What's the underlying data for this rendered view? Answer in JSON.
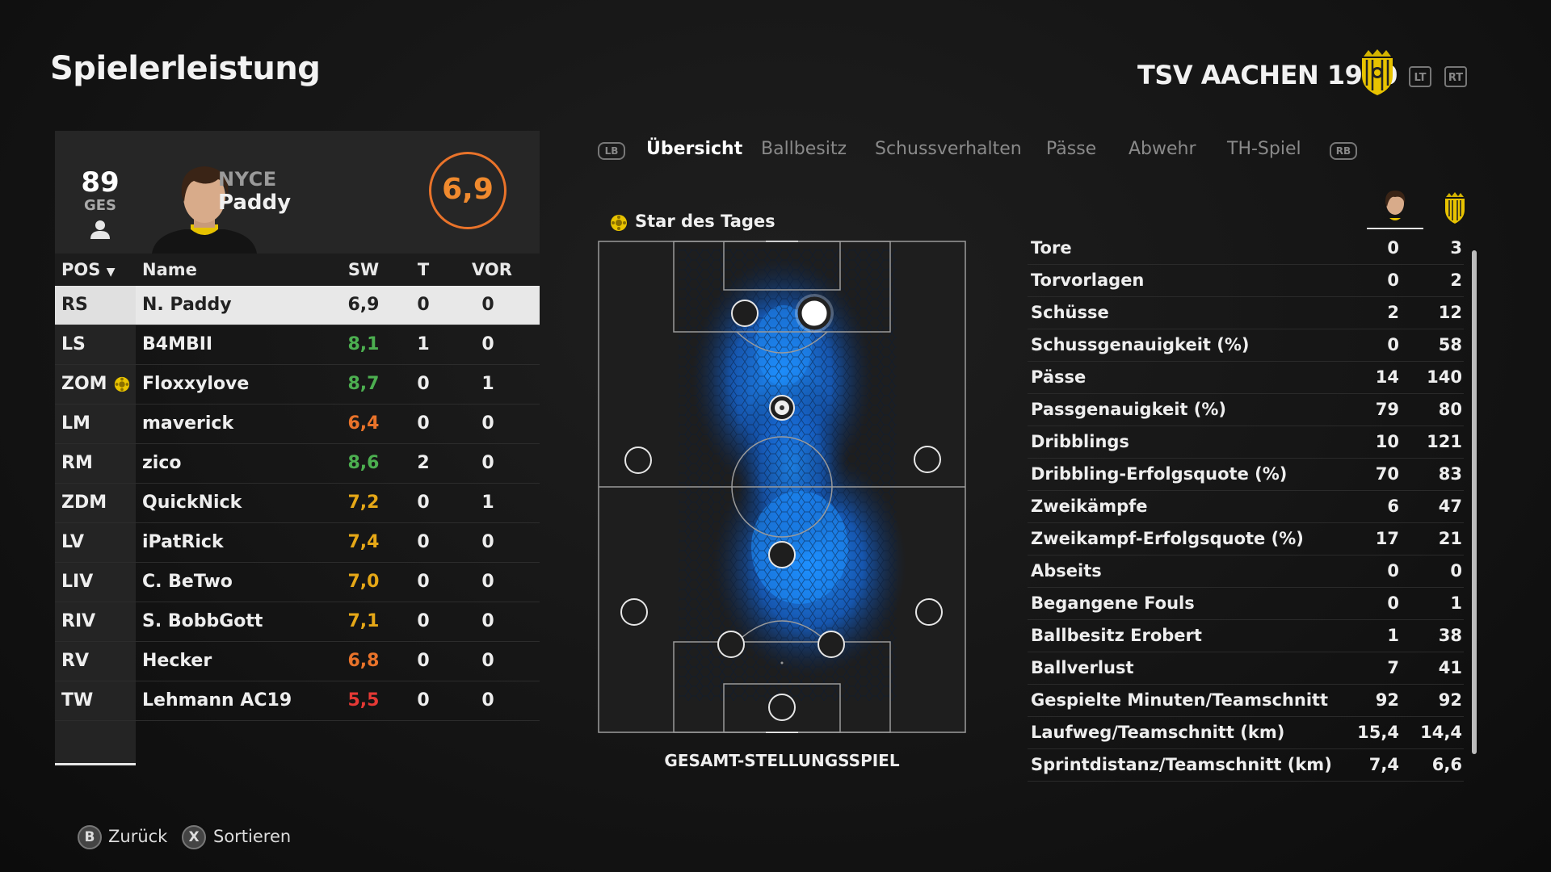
{
  "page_title": "Spielerleistung",
  "club": {
    "name": "TSV AACHEN 1900",
    "lt": "LT",
    "rt": "RT"
  },
  "player": {
    "overall": "89",
    "overall_label": "GES",
    "first_name": "NYCE",
    "last_name": "Paddy",
    "match_rating": "6,9"
  },
  "table": {
    "headers": {
      "pos": "POS",
      "name": "Name",
      "sw": "SW",
      "t": "T",
      "vor": "VOR"
    },
    "rows": [
      {
        "pos": "RS",
        "name": "N. Paddy",
        "sw": "6,9",
        "t": "0",
        "vor": "0"
      },
      {
        "pos": "LS",
        "name": "B4MBII",
        "sw": "8,1",
        "t": "1",
        "vor": "0"
      },
      {
        "pos": "ZOM",
        "name": "Floxxylove",
        "sw": "8,7",
        "t": "0",
        "vor": "1"
      },
      {
        "pos": "LM",
        "name": "maverick",
        "sw": "6,4",
        "t": "0",
        "vor": "0"
      },
      {
        "pos": "RM",
        "name": "zico",
        "sw": "8,6",
        "t": "2",
        "vor": "0"
      },
      {
        "pos": "ZDM",
        "name": "QuickNick",
        "sw": "7,2",
        "t": "0",
        "vor": "1"
      },
      {
        "pos": "LV",
        "name": "iPatRick",
        "sw": "7,4",
        "t": "0",
        "vor": "0"
      },
      {
        "pos": "LIV",
        "name": "C. BeTwo",
        "sw": "7,0",
        "t": "0",
        "vor": "0"
      },
      {
        "pos": "RIV",
        "name": "S. BobbGott",
        "sw": "7,1",
        "t": "0",
        "vor": "0"
      },
      {
        "pos": "RV",
        "name": "Hecker",
        "sw": "6,8",
        "t": "0",
        "vor": "0"
      },
      {
        "pos": "TW",
        "name": "Lehmann AC19",
        "sw": "5,5",
        "t": "0",
        "vor": "0"
      }
    ]
  },
  "tabs": {
    "lb": "LB",
    "rb": "RB",
    "items": [
      "Übersicht",
      "Ballbesitz",
      "Schussverhalten",
      "Pässe",
      "Abwehr",
      "TH-Spiel"
    ]
  },
  "heatmap": {
    "star_label": "Star des Tages",
    "caption": "GESAMT-STELLUNGSSPIEL"
  },
  "stats": [
    {
      "label": "Tore",
      "player": "0",
      "team": "3"
    },
    {
      "label": "Torvorlagen",
      "player": "0",
      "team": "2"
    },
    {
      "label": "Schüsse",
      "player": "2",
      "team": "12"
    },
    {
      "label": "Schussgenauigkeit (%)",
      "player": "0",
      "team": "58"
    },
    {
      "label": "Pässe",
      "player": "14",
      "team": "140"
    },
    {
      "label": "Passgenauigkeit (%)",
      "player": "79",
      "team": "80"
    },
    {
      "label": "Dribblings",
      "player": "10",
      "team": "121"
    },
    {
      "label": "Dribbling-Erfolgsquote (%)",
      "player": "70",
      "team": "83"
    },
    {
      "label": "Zweikämpfe",
      "player": "6",
      "team": "47"
    },
    {
      "label": "Zweikampf-Erfolgsquote (%)",
      "player": "17",
      "team": "21"
    },
    {
      "label": "Abseits",
      "player": "0",
      "team": "0"
    },
    {
      "label": "Begangene Fouls",
      "player": "0",
      "team": "1"
    },
    {
      "label": "Ballbesitz Erobert",
      "player": "1",
      "team": "38"
    },
    {
      "label": "Ballverlust",
      "player": "7",
      "team": "41"
    },
    {
      "label": "Gespielte Minuten/Teamschnitt",
      "player": "92",
      "team": "92"
    },
    {
      "label": "Laufweg/Teamschnitt (km)",
      "player": "15,4",
      "team": "14,4"
    },
    {
      "label": "Sprintdistanz/Teamschnitt (km)",
      "player": "7,4",
      "team": "6,6"
    }
  ],
  "footer": {
    "back_key": "B",
    "back_label": "Zurück",
    "sort_key": "X",
    "sort_label": "Sortieren"
  },
  "colors": {
    "rating_green": "#4caf50",
    "rating_yellow": "#e6a817",
    "rating_orange": "#e9732a",
    "rating_red": "#e53935",
    "heat_blue": "#1e90ff"
  }
}
